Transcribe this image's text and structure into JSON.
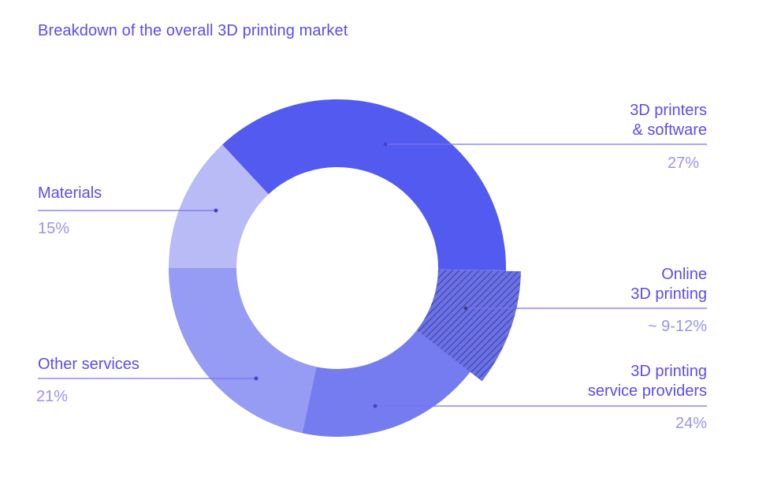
{
  "title": "Breakdown of the overall 3D printing market",
  "colors": {
    "title": "#5b4cf0",
    "label": "#5b4cf0",
    "value": "#9a93f2",
    "leader_line": "#7b6ff0",
    "printers_software": "#535af0",
    "materials": "#b9bbf6",
    "other_services": "#969bf3",
    "service_providers": "#757cef",
    "online_hatch": "#6a70e8"
  },
  "segments": [
    {
      "id": "printers",
      "label_line1": "3D printers",
      "label_line2": "& software",
      "value": "27%"
    },
    {
      "id": "online",
      "label_line1": "Online",
      "label_line2": "3D printing",
      "value": "~ 9-12%"
    },
    {
      "id": "service",
      "label_line1": "3D printing",
      "label_line2": "service providers",
      "value": "24%"
    },
    {
      "id": "other",
      "label_line1": "Other services",
      "value": "21%"
    },
    {
      "id": "materials",
      "label_line1": "Materials",
      "value": "15%"
    }
  ],
  "chart_data": {
    "type": "pie",
    "subtype": "donut",
    "title": "Breakdown of the overall 3D printing market",
    "categories": [
      "3D printers & software",
      "3D printing service providers",
      "Other services",
      "Materials",
      "Online 3D printing"
    ],
    "values": [
      27,
      24,
      21,
      15,
      10.5
    ],
    "value_labels": [
      "27%",
      "24%",
      "21%",
      "15%",
      "~ 9-12%"
    ],
    "notes": "Online 3D printing (~9-12%) is shown as a hatched overlay wedge spanning part of the 3D printing service providers segment, extending slightly beyond the outer ring.",
    "legend": "none (direct labels with leader lines)"
  }
}
